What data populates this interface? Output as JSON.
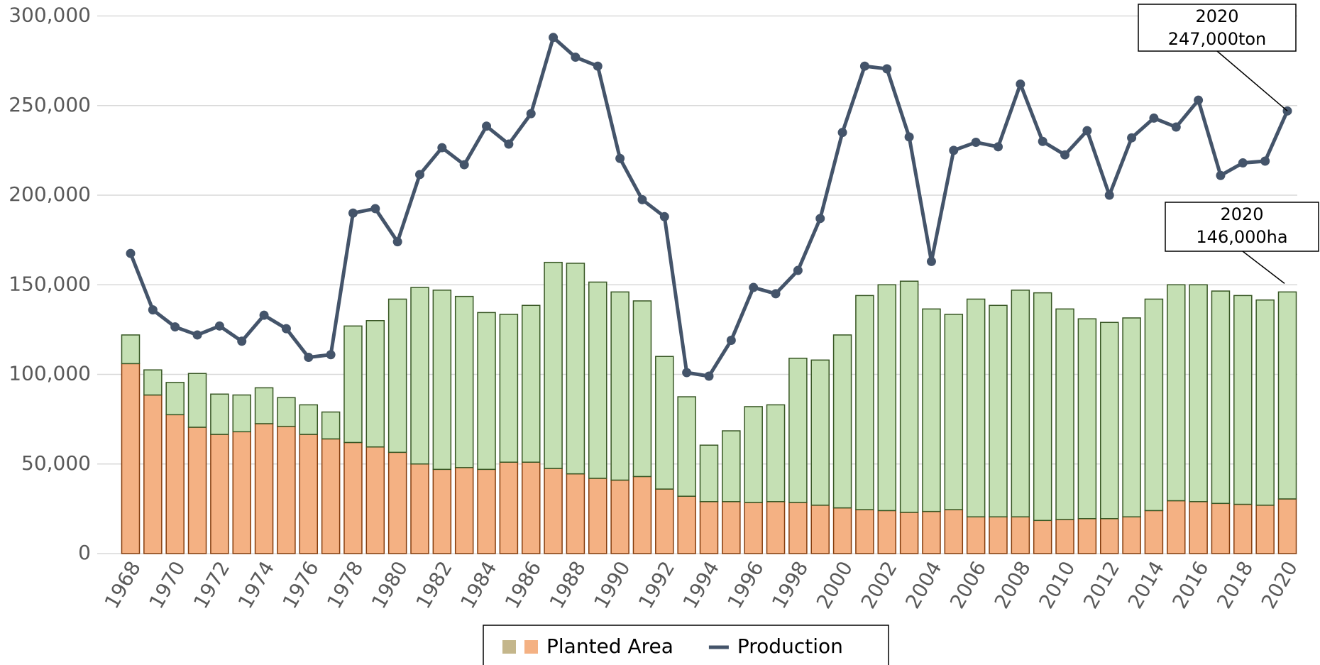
{
  "chart_data": {
    "type": "bar_line",
    "categories": [
      "1968",
      null,
      "1970",
      null,
      "1972",
      null,
      "1974",
      null,
      "1976",
      null,
      "1978",
      null,
      "1980",
      null,
      "1982",
      null,
      "1984",
      null,
      "1986",
      null,
      "1988",
      null,
      "1990",
      null,
      "1992",
      null,
      "1994",
      null,
      "1996",
      null,
      "1998",
      null,
      "2000",
      null,
      "2002",
      null,
      "2004",
      null,
      "2006",
      null,
      "2008",
      null,
      "2010",
      null,
      "2012",
      null,
      "2014",
      null,
      "2016",
      null,
      "2018",
      null,
      "2020"
    ],
    "series": [
      {
        "name": "Planted Area",
        "type": "bar",
        "color": "#f4b183",
        "stroke": "#843c0c",
        "legend_colors": [
          "#c4b68b",
          "#f4b183"
        ],
        "values": [
          106000,
          88500,
          77500,
          70500,
          66500,
          68000,
          72500,
          71000,
          66500,
          64000,
          62000,
          59500,
          56500,
          50000,
          47000,
          48000,
          47000,
          51000,
          51000,
          47500,
          44500,
          42000,
          41000,
          43000,
          36000,
          32000,
          29000,
          29000,
          28500,
          29000,
          28500,
          27000,
          25500,
          24500,
          24000,
          23000,
          23500,
          24500,
          20500,
          20500,
          20500,
          18500,
          19000,
          19500,
          19500,
          20500,
          24000,
          29500,
          29000,
          28000,
          27500,
          27000,
          30500
        ]
      },
      {
        "type": "bar",
        "color": "#c5e0b4",
        "stroke": "#375623",
        "values": [
          16000,
          14000,
          18000,
          30000,
          22500,
          20500,
          20000,
          16000,
          16500,
          15000,
          65000,
          70500,
          85500,
          98500,
          100000,
          95500,
          87500,
          82500,
          87500,
          115000,
          117500,
          109500,
          105000,
          98000,
          74000,
          55500,
          31500,
          39500,
          53500,
          54000,
          80500,
          81000,
          96500,
          119500,
          126000,
          129000,
          113000,
          109000,
          121500,
          118000,
          126500,
          127000,
          117500,
          111500,
          109500,
          111000,
          118000,
          120500,
          121000,
          118500,
          116500,
          114500,
          115500
        ]
      },
      {
        "name": "Production",
        "type": "line",
        "color": "#44546a",
        "values": [
          167500,
          136000,
          126500,
          122000,
          127000,
          118500,
          133000,
          125500,
          109500,
          111000,
          190000,
          192500,
          174000,
          211500,
          226500,
          217000,
          238500,
          228500,
          245500,
          288000,
          277000,
          272000,
          220500,
          197500,
          188000,
          101000,
          99000,
          119000,
          148500,
          145000,
          158000,
          187000,
          235000,
          272000,
          270500,
          232500,
          163000,
          225000,
          229500,
          227000,
          262000,
          230000,
          222500,
          236000,
          200000,
          232000,
          243000,
          238000,
          253000,
          211000,
          218000,
          219000,
          247000
        ]
      }
    ],
    "ylim": [
      0,
      300000
    ],
    "yticks": [
      0,
      {
        "value": 50000,
        "label": "50,000"
      },
      {
        "value": 100000,
        "label": "100,000"
      },
      {
        "value": 150000,
        "label": "150,000"
      },
      {
        "value": 200000,
        "label": "200,000"
      },
      {
        "value": 250000,
        "label": "250,000"
      },
      {
        "value": 300000,
        "label": "300,000"
      }
    ],
    "grid": true,
    "annotations": [
      {
        "lines": [
          "2020",
          "247,000ton"
        ]
      },
      {
        "lines": [
          "2020",
          "146,000ha"
        ]
      }
    ]
  }
}
